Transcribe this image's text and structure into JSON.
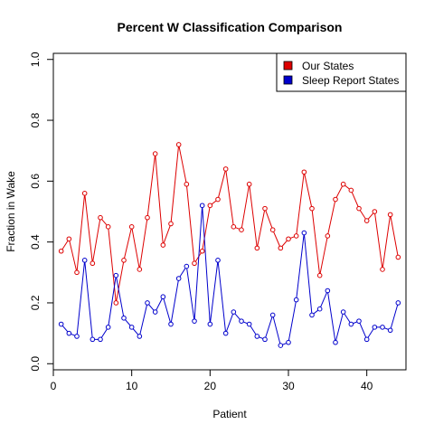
{
  "chart_data": {
    "type": "line",
    "title": "Percent W Classification Comparison",
    "xlabel": "Patient",
    "ylabel": "Fraction in Wake",
    "xlim": [
      0,
      45
    ],
    "ylim": [
      -0.02,
      1.02
    ],
    "x_ticks": [
      0,
      10,
      20,
      30,
      40
    ],
    "y_ticks": [
      0.0,
      0.2,
      0.4,
      0.6,
      0.8,
      1.0
    ],
    "y_tick_labels": [
      "0.0",
      "0.2",
      "0.4",
      "0.6",
      "0.8",
      "1.0"
    ],
    "grid": false,
    "legend_position": "top-right",
    "x": [
      1,
      2,
      3,
      4,
      5,
      6,
      7,
      8,
      9,
      10,
      11,
      12,
      13,
      14,
      15,
      16,
      17,
      18,
      19,
      20,
      21,
      22,
      23,
      24,
      25,
      26,
      27,
      28,
      29,
      30,
      31,
      32,
      33,
      34,
      35,
      36,
      37,
      38,
      39,
      40,
      41,
      42,
      43,
      44
    ],
    "series": [
      {
        "name": "Our States",
        "color": "#dd0000",
        "values": [
          0.37,
          0.41,
          0.3,
          0.56,
          0.33,
          0.48,
          0.45,
          0.2,
          0.34,
          0.45,
          0.31,
          0.48,
          0.69,
          0.39,
          0.46,
          0.72,
          0.59,
          0.33,
          0.37,
          0.52,
          0.54,
          0.64,
          0.45,
          0.44,
          0.59,
          0.38,
          0.51,
          0.44,
          0.38,
          0.41,
          0.42,
          0.63,
          0.51,
          0.29,
          0.42,
          0.54,
          0.59,
          0.57,
          0.51,
          0.47,
          0.5,
          0.31,
          0.49,
          0.35
        ]
      },
      {
        "name": "Sleep Report States",
        "color": "#0000cc",
        "values": [
          0.13,
          0.1,
          0.09,
          0.34,
          0.08,
          0.08,
          0.12,
          0.29,
          0.15,
          0.12,
          0.09,
          0.2,
          0.17,
          0.22,
          0.13,
          0.28,
          0.32,
          0.14,
          0.52,
          0.13,
          0.34,
          0.1,
          0.17,
          0.14,
          0.13,
          0.09,
          0.08,
          0.16,
          0.06,
          0.07,
          0.21,
          0.43,
          0.16,
          0.18,
          0.24,
          0.07,
          0.17,
          0.13,
          0.14,
          0.08,
          0.12,
          0.12,
          0.11,
          0.2
        ]
      }
    ]
  }
}
